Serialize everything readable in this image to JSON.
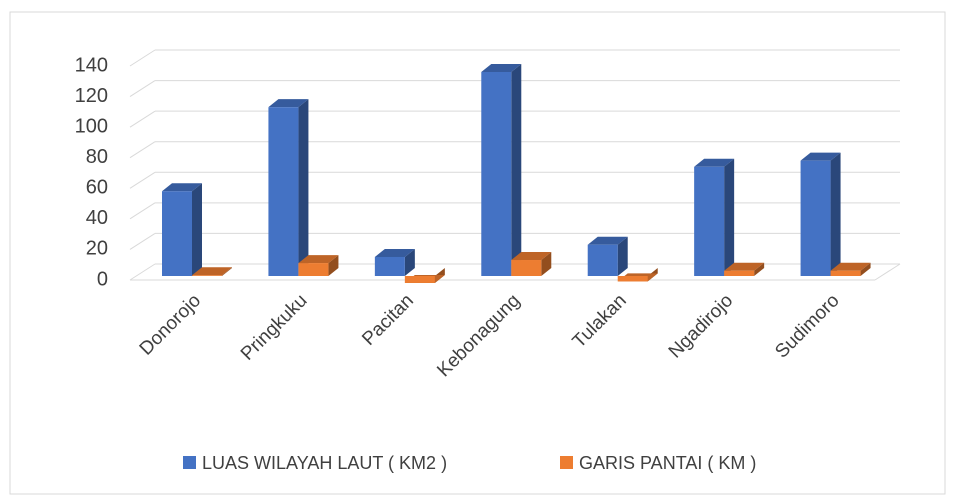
{
  "chart_data": {
    "type": "bar3d",
    "categories": [
      "Donorojo",
      "Pringkuku",
      "Pacitan",
      "Kebonagung",
      "Tulakan",
      "Ngadirojo",
      "Sudimoro"
    ],
    "series": [
      {
        "name": "LUAS WILAYAH LAUT ( KM2 )",
        "color": "#4472c4",
        "values": [
          62,
          117,
          19,
          140,
          27,
          78,
          82
        ]
      },
      {
        "name": "GARIS PANTAI ( KM )",
        "color": "#ed7d31",
        "values": [
          7,
          15,
          2,
          17,
          3,
          10,
          10
        ]
      }
    ],
    "ylim": [
      0,
      140
    ],
    "yticks": [
      0,
      20,
      40,
      60,
      80,
      100,
      120,
      140
    ],
    "grid": true,
    "legend": "bottom"
  }
}
